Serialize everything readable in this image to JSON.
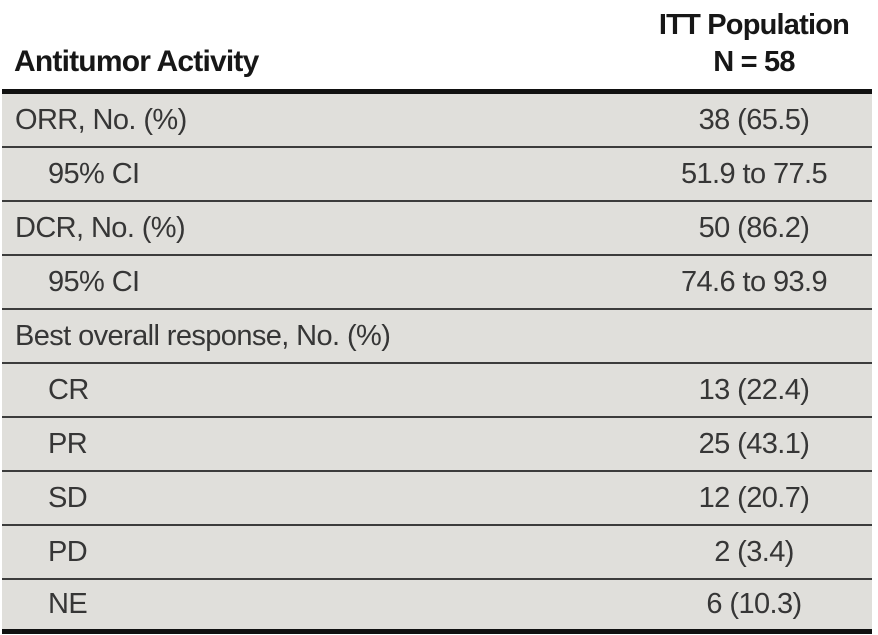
{
  "table": {
    "header": {
      "col1": "Antitumor Activity",
      "col2_line1": "ITT Population",
      "col2_line2": "N = 58"
    },
    "rows": [
      {
        "label": "ORR, No. (%)",
        "value": "38 (65.5)",
        "indent": 0
      },
      {
        "label": "95% CI",
        "value": "51.9 to 77.5",
        "indent": 1
      },
      {
        "label": "DCR, No. (%)",
        "value": "50 (86.2)",
        "indent": 0
      },
      {
        "label": "95% CI",
        "value": "74.6 to 93.9",
        "indent": 1
      },
      {
        "label": "Best overall response, No. (%)",
        "value": "",
        "indent": 0
      },
      {
        "label": "CR",
        "value": "13 (22.4)",
        "indent": 1
      },
      {
        "label": "PR",
        "value": "25 (43.1)",
        "indent": 1
      },
      {
        "label": "SD",
        "value": "12 (20.7)",
        "indent": 1
      },
      {
        "label": "PD",
        "value": "2 (3.4)",
        "indent": 1
      },
      {
        "label": "NE",
        "value": "6 (10.3)",
        "indent": 1
      }
    ]
  },
  "chart_data": {
    "type": "table",
    "title": "Antitumor Activity",
    "columns": [
      "Antitumor Activity",
      "ITT Population N = 58"
    ],
    "rows": [
      [
        "ORR, No. (%)",
        "38 (65.5)"
      ],
      [
        "95% CI",
        "51.9 to 77.5"
      ],
      [
        "DCR, No. (%)",
        "50 (86.2)"
      ],
      [
        "95% CI",
        "74.6 to 93.9"
      ],
      [
        "Best overall response, No. (%)",
        ""
      ],
      [
        "CR",
        "13 (22.4)"
      ],
      [
        "PR",
        "25 (43.1)"
      ],
      [
        "SD",
        "12 (20.7)"
      ],
      [
        "PD",
        "2 (3.4)"
      ],
      [
        "NE",
        "6 (10.3)"
      ]
    ],
    "population_n": 58
  },
  "colors": {
    "row_background": "#e0dfdb",
    "row_separator": "#3c3c3c",
    "heavy_rule": "#111111",
    "body_text": "#363636",
    "header_text": "#171717"
  }
}
